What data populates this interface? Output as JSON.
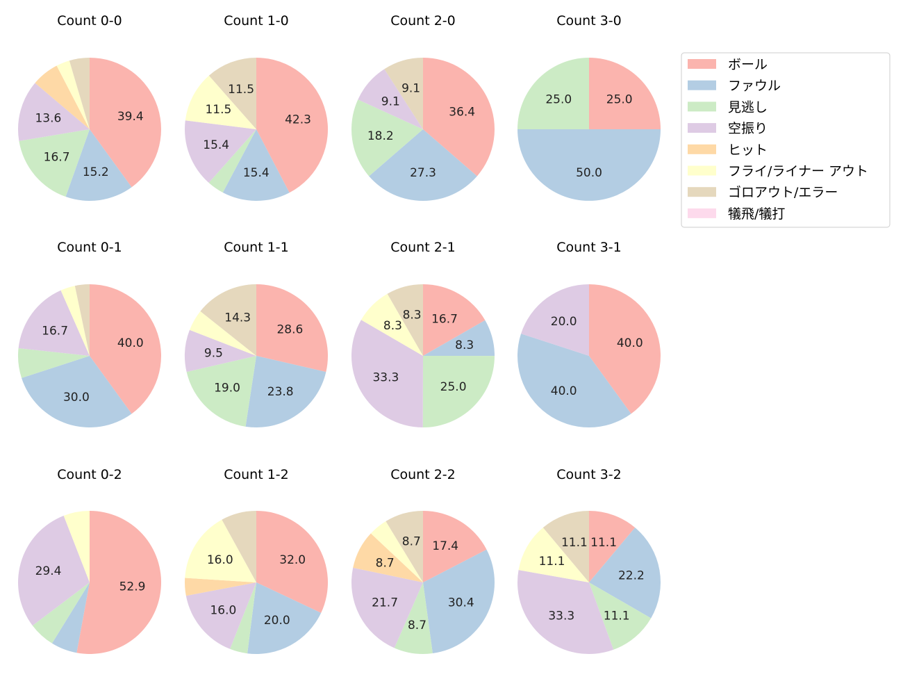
{
  "chart_data": {
    "type": "pie",
    "legend": {
      "placement": "right",
      "entries": [
        {
          "name": "ボール",
          "color": "#fbb4ae"
        },
        {
          "name": "ファウル",
          "color": "#b3cde3"
        },
        {
          "name": "見逃し",
          "color": "#ccebc5"
        },
        {
          "name": "空振り",
          "color": "#decbe4"
        },
        {
          "name": "ヒット",
          "color": "#fed9a6"
        },
        {
          "name": "フライ/ライナー アウト",
          "color": "#ffffcc"
        },
        {
          "name": "ゴロアウト/エラー",
          "color": "#e5d8bd"
        },
        {
          "name": "犠飛/犠打",
          "color": "#fddaec"
        }
      ]
    },
    "charts": [
      {
        "title": "Count 0-0",
        "values": [
          39.4,
          15.2,
          16.7,
          13.6,
          6.1,
          3.0,
          4.5,
          0
        ],
        "labels": [
          "39.4",
          "15.2",
          "16.7",
          "13.6",
          "",
          "",
          "",
          ""
        ]
      },
      {
        "title": "Count 1-0",
        "values": [
          42.3,
          15.4,
          3.8,
          15.4,
          0,
          11.5,
          11.5,
          0
        ],
        "labels": [
          "42.3",
          "15.4",
          "",
          "15.4",
          "",
          "11.5",
          "11.5",
          ""
        ]
      },
      {
        "title": "Count 2-0",
        "values": [
          36.4,
          27.3,
          18.2,
          9.1,
          0,
          0,
          9.1,
          0
        ],
        "labels": [
          "36.4",
          "27.3",
          "18.2",
          "9.1",
          "",
          "",
          "9.1",
          ""
        ]
      },
      {
        "title": "Count 3-0",
        "values": [
          25.0,
          50.0,
          25.0,
          0,
          0,
          0,
          0,
          0
        ],
        "labels": [
          "25.0",
          "50.0",
          "25.0",
          "",
          "",
          "",
          "",
          ""
        ]
      },
      {
        "title": "Count 0-1",
        "values": [
          40.0,
          30.0,
          6.7,
          16.7,
          0,
          3.3,
          3.3,
          0
        ],
        "labels": [
          "40.0",
          "30.0",
          "",
          "16.7",
          "",
          "",
          "",
          ""
        ]
      },
      {
        "title": "Count 1-1",
        "values": [
          28.6,
          23.8,
          19.0,
          9.5,
          0,
          4.8,
          14.3,
          0
        ],
        "labels": [
          "28.6",
          "23.8",
          "19.0",
          "9.5",
          "",
          "",
          "14.3",
          ""
        ]
      },
      {
        "title": "Count 2-1",
        "values": [
          16.7,
          8.3,
          25.0,
          33.3,
          0,
          8.3,
          8.3,
          0
        ],
        "labels": [
          "16.7",
          "8.3",
          "25.0",
          "33.3",
          "",
          "8.3",
          "8.3",
          ""
        ]
      },
      {
        "title": "Count 3-1",
        "values": [
          40.0,
          40.0,
          0,
          20.0,
          0,
          0,
          0,
          0
        ],
        "labels": [
          "40.0",
          "40.0",
          "",
          "20.0",
          "",
          "",
          "",
          ""
        ]
      },
      {
        "title": "Count 0-2",
        "values": [
          52.9,
          5.9,
          5.9,
          29.4,
          0,
          5.9,
          0,
          0
        ],
        "labels": [
          "52.9",
          "",
          "",
          "29.4",
          "",
          "",
          "",
          ""
        ]
      },
      {
        "title": "Count 1-2",
        "values": [
          32.0,
          20.0,
          4.0,
          16.0,
          4.0,
          16.0,
          8.0,
          0
        ],
        "labels": [
          "32.0",
          "20.0",
          "",
          "16.0",
          "",
          "16.0",
          "",
          ""
        ]
      },
      {
        "title": "Count 2-2",
        "values": [
          17.4,
          30.4,
          8.7,
          21.7,
          8.7,
          4.3,
          8.7,
          0
        ],
        "labels": [
          "17.4",
          "30.4",
          "8.7",
          "21.7",
          "8.7",
          "",
          "8.7",
          ""
        ]
      },
      {
        "title": "Count 3-2",
        "values": [
          11.1,
          22.2,
          11.1,
          33.3,
          0,
          11.1,
          11.1,
          0
        ],
        "labels": [
          "11.1",
          "22.2",
          "11.1",
          "33.3",
          "",
          "11.1",
          "11.1",
          ""
        ]
      }
    ]
  }
}
